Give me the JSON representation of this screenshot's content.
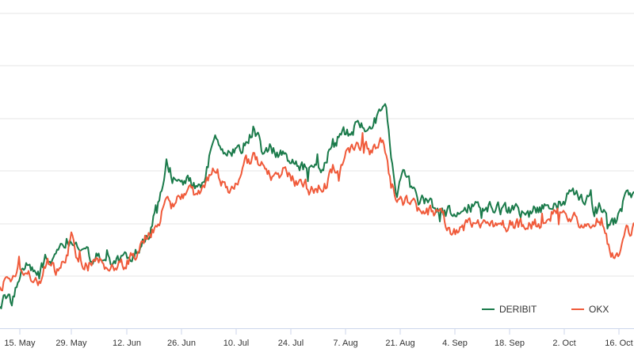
{
  "chart_data": {
    "type": "line",
    "x_ticks": [
      "15. May",
      "29. May",
      "12. Jun",
      "26. Jun",
      "10. Jul",
      "24. Jul",
      "7. Aug",
      "21. Aug",
      "4. Sep",
      "18. Sep",
      "2. Oct",
      "16. Oct"
    ],
    "grid": true,
    "legend_position": "bottom-right",
    "series": [
      {
        "name": "DERIBIT",
        "color": "#1a7a4a",
        "anchors": [
          [
            0,
            385
          ],
          [
            7,
            375
          ],
          [
            14,
            380
          ],
          [
            21,
            365
          ],
          [
            29,
            345
          ],
          [
            36,
            333
          ],
          [
            43,
            338
          ],
          [
            50,
            348
          ],
          [
            57,
            330
          ],
          [
            64,
            330
          ],
          [
            70,
            318
          ],
          [
            80,
            305
          ],
          [
            90,
            300
          ],
          [
            100,
            318
          ],
          [
            110,
            320
          ],
          [
            120,
            326
          ],
          [
            130,
            332
          ],
          [
            140,
            330
          ],
          [
            150,
            326
          ],
          [
            160,
            322
          ],
          [
            170,
            318
          ],
          [
            180,
            305
          ],
          [
            190,
            290
          ],
          [
            200,
            255
          ],
          [
            210,
            205
          ],
          [
            220,
            228
          ],
          [
            230,
            232
          ],
          [
            240,
            228
          ],
          [
            250,
            235
          ],
          [
            260,
            220
          ],
          [
            270,
            170
          ],
          [
            280,
            185
          ],
          [
            290,
            195
          ],
          [
            300,
            190
          ],
          [
            310,
            180
          ],
          [
            320,
            160
          ],
          [
            330,
            188
          ],
          [
            340,
            190
          ],
          [
            350,
            196
          ],
          [
            360,
            200
          ],
          [
            370,
            205
          ],
          [
            380,
            210
          ],
          [
            390,
            215
          ],
          [
            400,
            218
          ],
          [
            410,
            205
          ],
          [
            420,
            180
          ],
          [
            430,
            172
          ],
          [
            440,
            166
          ],
          [
            450,
            158
          ],
          [
            460,
            160
          ],
          [
            470,
            157
          ],
          [
            480,
            145
          ],
          [
            486,
            128
          ],
          [
            490,
            160
          ],
          [
            495,
            205
          ],
          [
            500,
            245
          ],
          [
            510,
            222
          ],
          [
            520,
            240
          ],
          [
            530,
            254
          ],
          [
            540,
            258
          ],
          [
            550,
            262
          ],
          [
            560,
            266
          ],
          [
            570,
            270
          ],
          [
            580,
            268
          ],
          [
            590,
            262
          ],
          [
            600,
            258
          ],
          [
            610,
            260
          ],
          [
            620,
            262
          ],
          [
            630,
            266
          ],
          [
            640,
            268
          ],
          [
            650,
            265
          ],
          [
            660,
            268
          ],
          [
            670,
            268
          ],
          [
            680,
            264
          ],
          [
            690,
            260
          ],
          [
            700,
            262
          ],
          [
            710,
            252
          ],
          [
            720,
            246
          ],
          [
            730,
            248
          ],
          [
            740,
            250
          ],
          [
            750,
            265
          ],
          [
            760,
            262
          ],
          [
            770,
            290
          ],
          [
            780,
            270
          ],
          [
            790,
            248
          ],
          [
            800,
            245
          ]
        ]
      },
      {
        "name": "OKX",
        "color": "#f05a3a",
        "anchors": [
          [
            0,
            370
          ],
          [
            7,
            355
          ],
          [
            14,
            352
          ],
          [
            21,
            340
          ],
          [
            29,
            342
          ],
          [
            36,
            346
          ],
          [
            43,
            352
          ],
          [
            50,
            362
          ],
          [
            57,
            335
          ],
          [
            64,
            328
          ],
          [
            70,
            345
          ],
          [
            80,
            330
          ],
          [
            90,
            300
          ],
          [
            100,
            330
          ],
          [
            110,
            335
          ],
          [
            120,
            332
          ],
          [
            130,
            335
          ],
          [
            140,
            332
          ],
          [
            150,
            335
          ],
          [
            160,
            330
          ],
          [
            170,
            322
          ],
          [
            180,
            300
          ],
          [
            190,
            292
          ],
          [
            200,
            280
          ],
          [
            210,
            255
          ],
          [
            220,
            258
          ],
          [
            230,
            252
          ],
          [
            240,
            245
          ],
          [
            250,
            245
          ],
          [
            260,
            236
          ],
          [
            270,
            215
          ],
          [
            280,
            228
          ],
          [
            290,
            240
          ],
          [
            300,
            235
          ],
          [
            310,
            205
          ],
          [
            320,
            200
          ],
          [
            330,
            212
          ],
          [
            340,
            222
          ],
          [
            350,
            220
          ],
          [
            360,
            215
          ],
          [
            370,
            228
          ],
          [
            380,
            232
          ],
          [
            390,
            238
          ],
          [
            400,
            240
          ],
          [
            410,
            235
          ],
          [
            420,
            220
          ],
          [
            430,
            205
          ],
          [
            440,
            192
          ],
          [
            450,
            190
          ],
          [
            460,
            188
          ],
          [
            470,
            190
          ],
          [
            480,
            178
          ],
          [
            486,
            188
          ],
          [
            490,
            212
          ],
          [
            495,
            236
          ],
          [
            500,
            252
          ],
          [
            510,
            255
          ],
          [
            520,
            262
          ],
          [
            530,
            265
          ],
          [
            540,
            266
          ],
          [
            550,
            270
          ],
          [
            560,
            278
          ],
          [
            570,
            292
          ],
          [
            580,
            288
          ],
          [
            590,
            286
          ],
          [
            600,
            288
          ],
          [
            610,
            286
          ],
          [
            620,
            288
          ],
          [
            630,
            288
          ],
          [
            640,
            285
          ],
          [
            650,
            282
          ],
          [
            660,
            286
          ],
          [
            670,
            285
          ],
          [
            680,
            283
          ],
          [
            690,
            280
          ],
          [
            700,
            262
          ],
          [
            710,
            270
          ],
          [
            720,
            275
          ],
          [
            730,
            280
          ],
          [
            740,
            278
          ],
          [
            750,
            280
          ],
          [
            760,
            278
          ],
          [
            770,
            322
          ],
          [
            780,
            318
          ],
          [
            790,
            290
          ],
          [
            800,
            290
          ]
        ]
      }
    ]
  }
}
